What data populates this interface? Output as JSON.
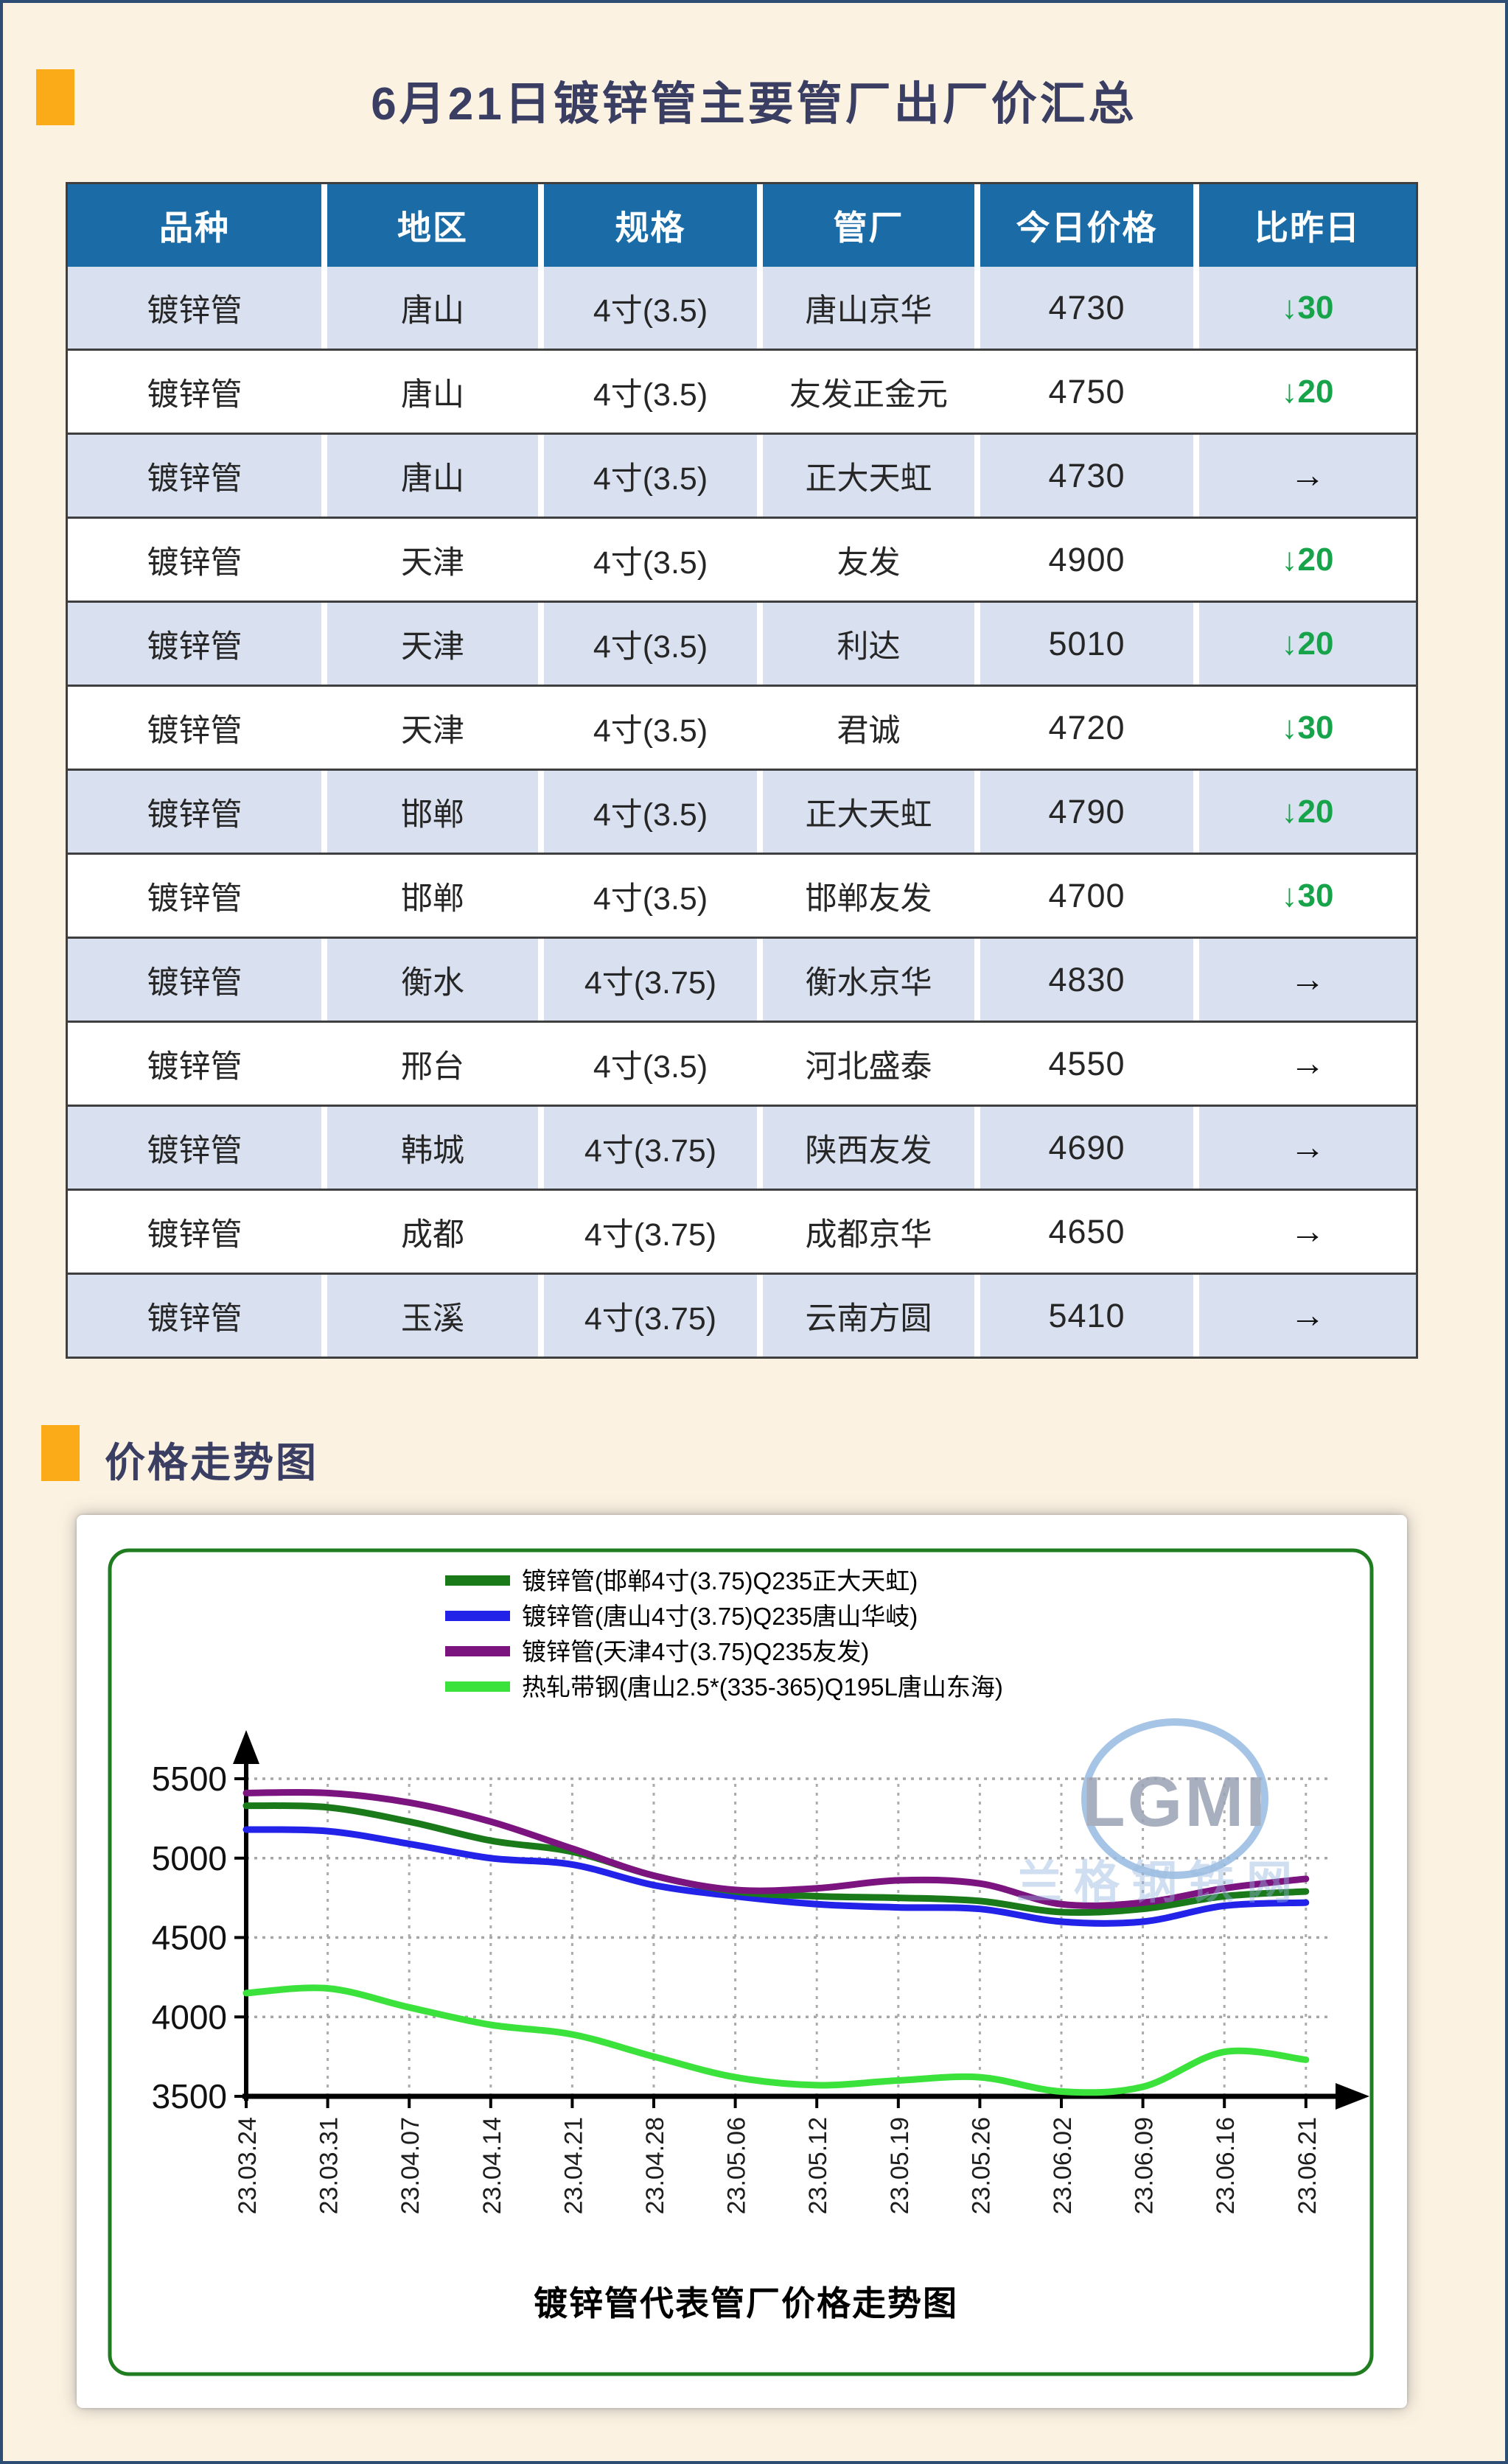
{
  "page": {
    "title": "6月21日镀锌管主要管厂出厂价汇总",
    "section2_title": "价格走势图"
  },
  "table": {
    "headers": [
      "品种",
      "地区",
      "规格",
      "管厂",
      "今日价格",
      "比昨日"
    ],
    "rows": [
      {
        "cells": [
          "镀锌管",
          "唐山",
          "4寸(3.5)",
          "唐山京华",
          "4730",
          "↓30"
        ],
        "direction": "down"
      },
      {
        "cells": [
          "镀锌管",
          "唐山",
          "4寸(3.5)",
          "友发正金元",
          "4750",
          "↓20"
        ],
        "direction": "down"
      },
      {
        "cells": [
          "镀锌管",
          "唐山",
          "4寸(3.5)",
          "正大天虹",
          "4730",
          "→"
        ],
        "direction": "flat"
      },
      {
        "cells": [
          "镀锌管",
          "天津",
          "4寸(3.5)",
          "友发",
          "4900",
          "↓20"
        ],
        "direction": "down"
      },
      {
        "cells": [
          "镀锌管",
          "天津",
          "4寸(3.5)",
          "利达",
          "5010",
          "↓20"
        ],
        "direction": "down"
      },
      {
        "cells": [
          "镀锌管",
          "天津",
          "4寸(3.5)",
          "君诚",
          "4720",
          "↓30"
        ],
        "direction": "down"
      },
      {
        "cells": [
          "镀锌管",
          "邯郸",
          "4寸(3.5)",
          "正大天虹",
          "4790",
          "↓20"
        ],
        "direction": "down"
      },
      {
        "cells": [
          "镀锌管",
          "邯郸",
          "4寸(3.5)",
          "邯郸友发",
          "4700",
          "↓30"
        ],
        "direction": "down"
      },
      {
        "cells": [
          "镀锌管",
          "衡水",
          "4寸(3.75)",
          "衡水京华",
          "4830",
          "→"
        ],
        "direction": "flat"
      },
      {
        "cells": [
          "镀锌管",
          "邢台",
          "4寸(3.5)",
          "河北盛泰",
          "4550",
          "→"
        ],
        "direction": "flat"
      },
      {
        "cells": [
          "镀锌管",
          "韩城",
          "4寸(3.75)",
          "陕西友发",
          "4690",
          "→"
        ],
        "direction": "flat"
      },
      {
        "cells": [
          "镀锌管",
          "成都",
          "4寸(3.75)",
          "成都京华",
          "4650",
          "→"
        ],
        "direction": "flat"
      },
      {
        "cells": [
          "镀锌管",
          "玉溪",
          "4寸(3.75)",
          "云南方圆",
          "5410",
          "→"
        ],
        "direction": "flat"
      }
    ],
    "colors": {
      "header_bg": "#1b6ca6",
      "alt_row_bg": "#d9e0ef",
      "down_green": "#17a34a"
    }
  },
  "chart_data": {
    "type": "line",
    "title": "镀锌管代表管厂价格走势图",
    "x": [
      "23.03.24",
      "23.03.31",
      "23.04.07",
      "23.04.14",
      "23.04.21",
      "23.04.28",
      "23.05.06",
      "23.05.12",
      "23.05.19",
      "23.05.26",
      "23.06.02",
      "23.06.09",
      "23.06.16",
      "23.06.21"
    ],
    "ylim": [
      3500,
      5500
    ],
    "yticks": [
      3500,
      4000,
      4500,
      5000,
      5500
    ],
    "grid": true,
    "legend_position": "top-center",
    "series": [
      {
        "name": "镀锌管(邯郸4寸(3.75)Q235正大天虹)",
        "color": "#1a7a1a",
        "values": [
          5330,
          5320,
          5230,
          5110,
          5040,
          4890,
          4790,
          4760,
          4750,
          4730,
          4660,
          4680,
          4760,
          4790
        ]
      },
      {
        "name": "镀锌管(唐山4寸(3.75)Q235唐山华岐)",
        "color": "#2222e8",
        "values": [
          5180,
          5170,
          5090,
          5000,
          4960,
          4830,
          4760,
          4710,
          4690,
          4680,
          4600,
          4600,
          4700,
          4720
        ]
      },
      {
        "name": "镀锌管(天津4寸(3.75)Q235友发)",
        "color": "#7c1480",
        "values": [
          5410,
          5410,
          5350,
          5230,
          5060,
          4890,
          4800,
          4810,
          4860,
          4840,
          4710,
          4720,
          4810,
          4870
        ]
      },
      {
        "name": "热轧带钢(唐山2.5*(335-365)Q195L唐山东海)",
        "color": "#3ce23c",
        "values": [
          4150,
          4180,
          4060,
          3950,
          3890,
          3750,
          3620,
          3570,
          3600,
          3620,
          3530,
          3560,
          3780,
          3730
        ]
      }
    ],
    "watermark": {
      "logo": "LGMI",
      "text": "兰格钢铁网"
    }
  }
}
